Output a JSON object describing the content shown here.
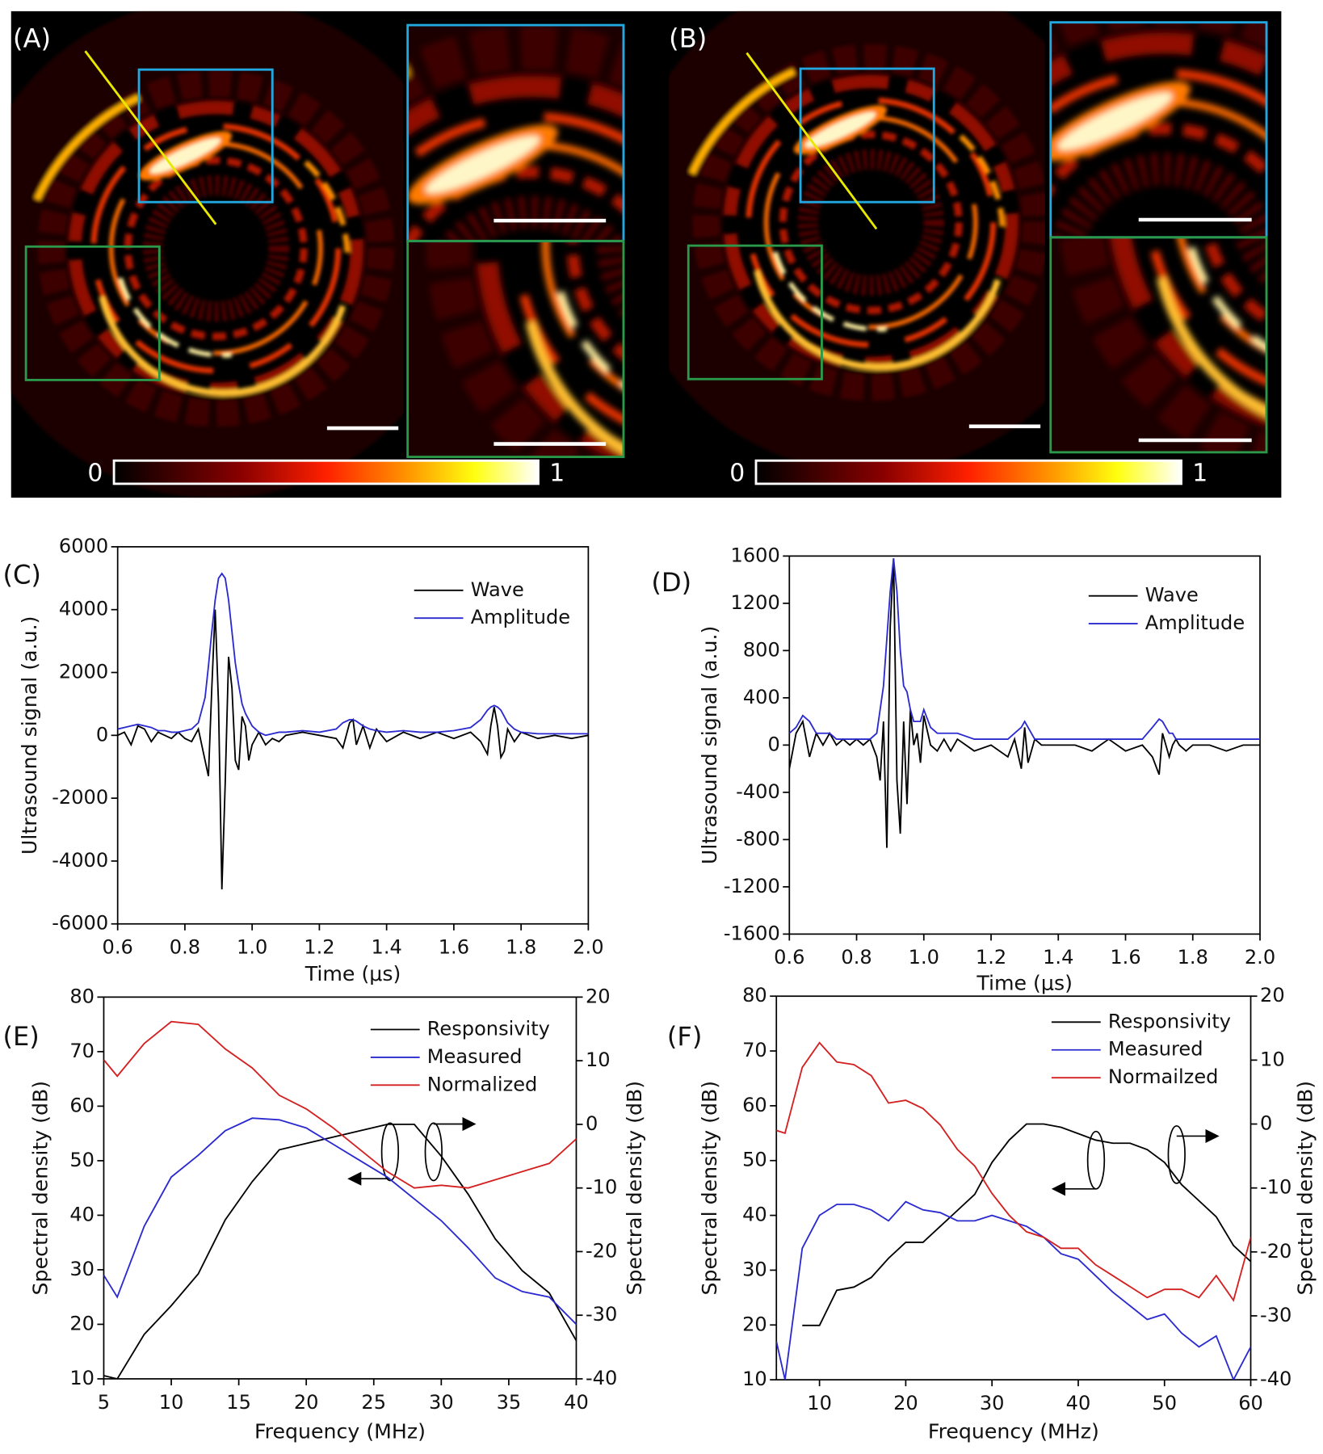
{
  "images": [
    {
      "panel_label": "(A)",
      "colorbar": [
        0,
        1
      ]
    },
    {
      "panel_label": "(B)",
      "colorbar": [
        0,
        1
      ]
    }
  ],
  "chart_data": [
    {
      "type": "line",
      "panel_label": "(C)",
      "xlabel": "Time (μs)",
      "ylabel": "Ultrasound signal (a.u.)",
      "legend": "upper right",
      "xlim": [
        0.6,
        2.0
      ],
      "xticks": [
        0.6,
        0.8,
        {
          "value": 1.0,
          "label": "1.0"
        },
        1.2,
        1.4,
        1.6,
        1.8,
        {
          "value": 2.0,
          "label": "2.0"
        }
      ],
      "ylim": [
        -6000,
        6000
      ],
      "yticks": [
        -6000,
        -4000,
        -2000,
        0,
        2000,
        4000,
        6000
      ],
      "x": [
        0.6,
        0.62,
        0.64,
        0.66,
        0.68,
        0.7,
        0.72,
        0.74,
        0.76,
        0.78,
        0.8,
        0.82,
        0.84,
        0.86,
        0.87,
        0.88,
        0.89,
        0.9,
        0.91,
        0.92,
        0.93,
        0.94,
        0.95,
        0.96,
        0.97,
        0.98,
        0.99,
        1.0,
        1.02,
        1.04,
        1.06,
        1.08,
        1.1,
        1.15,
        1.2,
        1.25,
        1.27,
        1.29,
        1.3,
        1.31,
        1.33,
        1.35,
        1.37,
        1.4,
        1.45,
        1.5,
        1.55,
        1.6,
        1.65,
        1.68,
        1.7,
        1.71,
        1.72,
        1.73,
        1.74,
        1.75,
        1.76,
        1.78,
        1.8,
        1.85,
        1.9,
        1.95,
        2.0
      ],
      "series": [
        {
          "name": "Wave",
          "color": "#000000",
          "values": [
            0,
            100,
            -300,
            300,
            200,
            -200,
            100,
            0,
            -100,
            100,
            -100,
            -200,
            200,
            -800,
            -1300,
            1500,
            4000,
            1000,
            -4900,
            -1500,
            2500,
            1500,
            -800,
            -1100,
            600,
            300,
            -800,
            -300,
            100,
            -300,
            -100,
            -200,
            0,
            100,
            0,
            -100,
            -400,
            400,
            500,
            -300,
            300,
            -400,
            200,
            -200,
            100,
            -100,
            100,
            -100,
            100,
            -200,
            -600,
            300,
            900,
            300,
            -700,
            -500,
            200,
            -200,
            100,
            -100,
            0,
            -100,
            0
          ]
        },
        {
          "name": "Amplitude",
          "color": "#2a2ad0",
          "values": [
            200,
            250,
            300,
            350,
            300,
            250,
            150,
            150,
            100,
            100,
            150,
            200,
            400,
            1200,
            2200,
            3300,
            4300,
            5000,
            5150,
            5000,
            4300,
            3300,
            2300,
            1600,
            1000,
            700,
            500,
            300,
            100,
            0,
            50,
            100,
            100,
            150,
            100,
            200,
            400,
            500,
            500,
            450,
            300,
            200,
            150,
            100,
            150,
            100,
            100,
            150,
            250,
            500,
            800,
            900,
            950,
            900,
            800,
            600,
            400,
            200,
            100,
            50,
            50,
            50,
            50
          ]
        }
      ]
    },
    {
      "type": "line",
      "panel_label": "(D)",
      "xlabel": "Time (μs)",
      "ylabel": "Ultrasound signal (a.u.)",
      "legend": "upper right",
      "xlim": [
        0.6,
        2.0
      ],
      "xticks": [
        0.6,
        0.8,
        {
          "value": 1.0,
          "label": "1.0"
        },
        1.2,
        1.4,
        1.6,
        1.8,
        {
          "value": 2.0,
          "label": "2.0"
        }
      ],
      "ylim": [
        -1600,
        1600
      ],
      "yticks": [
        -1600,
        -1200,
        -800,
        -400,
        0,
        400,
        800,
        1200,
        1600
      ],
      "x": [
        0.6,
        0.62,
        0.64,
        0.66,
        0.68,
        0.7,
        0.72,
        0.74,
        0.76,
        0.78,
        0.8,
        0.82,
        0.84,
        0.86,
        0.87,
        0.88,
        0.89,
        0.9,
        0.91,
        0.92,
        0.93,
        0.94,
        0.95,
        0.96,
        0.97,
        0.98,
        0.99,
        1.0,
        1.02,
        1.04,
        1.06,
        1.08,
        1.1,
        1.15,
        1.2,
        1.25,
        1.27,
        1.29,
        1.3,
        1.31,
        1.33,
        1.35,
        1.37,
        1.4,
        1.45,
        1.5,
        1.55,
        1.6,
        1.65,
        1.68,
        1.7,
        1.71,
        1.72,
        1.73,
        1.74,
        1.75,
        1.76,
        1.78,
        1.8,
        1.85,
        1.9,
        1.95,
        2.0
      ],
      "series": [
        {
          "name": "Wave",
          "color": "#000000",
          "values": [
            -200,
            100,
            200,
            -100,
            100,
            0,
            100,
            0,
            50,
            0,
            50,
            0,
            50,
            -100,
            -300,
            200,
            -870,
            1000,
            1580,
            -300,
            -750,
            200,
            -500,
            300,
            0,
            100,
            -150,
            250,
            0,
            -50,
            50,
            -50,
            50,
            -50,
            0,
            -100,
            50,
            -200,
            150,
            -150,
            50,
            0,
            0,
            0,
            0,
            -50,
            50,
            -50,
            0,
            -100,
            -250,
            100,
            0,
            -100,
            0,
            50,
            0,
            -50,
            0,
            0,
            -50,
            0,
            0
          ]
        },
        {
          "name": "Amplitude",
          "color": "#2a2ad0",
          "values": [
            100,
            150,
            250,
            200,
            100,
            100,
            100,
            50,
            50,
            50,
            50,
            50,
            50,
            100,
            300,
            500,
            900,
            1300,
            1580,
            1300,
            800,
            500,
            450,
            300,
            200,
            200,
            200,
            300,
            150,
            100,
            100,
            100,
            100,
            50,
            50,
            50,
            100,
            150,
            200,
            150,
            50,
            50,
            50,
            50,
            50,
            50,
            50,
            50,
            50,
            150,
            220,
            200,
            150,
            100,
            100,
            50,
            50,
            50,
            50,
            50,
            50,
            50,
            50
          ]
        }
      ]
    },
    {
      "type": "line",
      "panel_label": "(E)",
      "xlabel": "Frequency (MHz)",
      "ylabel": "Spectral density (dB)",
      "y2label": "Spectral density (dB)",
      "legend": "upper right",
      "xlim": [
        5,
        40
      ],
      "xticks": [
        5,
        10,
        15,
        20,
        25,
        30,
        35,
        40
      ],
      "ylim": [
        10,
        80
      ],
      "yticks": [
        10,
        20,
        30,
        40,
        50,
        60,
        70,
        80
      ],
      "y2lim": [
        -40,
        20
      ],
      "y2ticks": [
        -40,
        -30,
        -20,
        -10,
        0,
        10,
        20
      ],
      "x": [
        5,
        6,
        8,
        10,
        12,
        14,
        16,
        18,
        20,
        22,
        24,
        26,
        28,
        30,
        32,
        34,
        36,
        38,
        40
      ],
      "series": [
        {
          "name": "Responsivity",
          "color": "#000000",
          "axis": "y2",
          "values": [
            -39.5,
            -40,
            -33,
            -28.5,
            -23.5,
            -15,
            -9,
            -4,
            -3,
            -2,
            -1,
            0,
            0,
            -5,
            -11,
            -18,
            -23,
            -26.5,
            -34
          ]
        },
        {
          "name": "Measured",
          "color": "#2a2ad0",
          "values": [
            29,
            25,
            38,
            47,
            51,
            55.5,
            57.8,
            57.5,
            56,
            53,
            50,
            47,
            43,
            39,
            34,
            28.5,
            26,
            25,
            20
          ]
        },
        {
          "name": "Normalized",
          "color": "#d42020",
          "values": [
            68.5,
            65.5,
            71.5,
            75.5,
            75,
            70.5,
            67,
            62,
            59.5,
            56,
            52,
            48,
            45,
            45.5,
            45,
            46.5,
            48,
            49.5,
            54
          ]
        }
      ]
    },
    {
      "type": "line",
      "panel_label": "(F)",
      "xlabel": "Frequency (MHz)",
      "ylabel": "Spectral density (dB)",
      "y2label": "Spectral density (dB)",
      "legend": "upper right",
      "xlim": [
        5,
        60
      ],
      "xticks": [
        10,
        20,
        30,
        40,
        50,
        60
      ],
      "ylim": [
        10,
        80
      ],
      "yticks": [
        10,
        20,
        30,
        40,
        50,
        60,
        70,
        80
      ],
      "y2lim": [
        -40,
        20
      ],
      "y2ticks": [
        -40,
        -30,
        -20,
        -10,
        0,
        10,
        20
      ],
      "x": [
        5,
        6,
        8,
        10,
        12,
        14,
        16,
        18,
        20,
        22,
        24,
        26,
        28,
        30,
        32,
        34,
        36,
        38,
        40,
        42,
        44,
        46,
        48,
        50,
        52,
        54,
        56,
        58,
        60
      ],
      "series": [
        {
          "name": "Responsivity",
          "color": "#000000",
          "axis": "y2",
          "values": [
            null,
            null,
            -31.5,
            -31.5,
            -26,
            -25.5,
            -24,
            -21,
            -18.5,
            -18.5,
            -16,
            -13.5,
            -11,
            -6,
            -2.5,
            0,
            0,
            -0.5,
            -1.5,
            -2.5,
            -3,
            -3,
            -4,
            -6,
            -9.5,
            -12,
            -14.5,
            -19,
            -21.5
          ]
        },
        {
          "name": "Measured",
          "color": "#2a2ad0",
          "values": [
            17,
            10,
            34,
            40,
            42,
            42,
            41,
            39,
            42.5,
            41,
            40.5,
            39,
            39,
            40,
            39,
            38,
            36,
            33,
            32,
            29,
            26,
            23.5,
            21,
            22,
            18.5,
            16,
            18,
            10,
            16
          ]
        },
        {
          "name": "Normailzed",
          "color": "#d42020",
          "values": [
            55.5,
            55,
            67,
            71.5,
            68,
            67.5,
            65.5,
            60.5,
            61,
            59.5,
            56.5,
            52,
            49,
            44,
            40,
            37,
            36,
            34,
            34,
            31,
            29,
            27,
            25,
            26.5,
            26.5,
            25,
            29,
            24.5,
            36
          ]
        }
      ]
    }
  ]
}
